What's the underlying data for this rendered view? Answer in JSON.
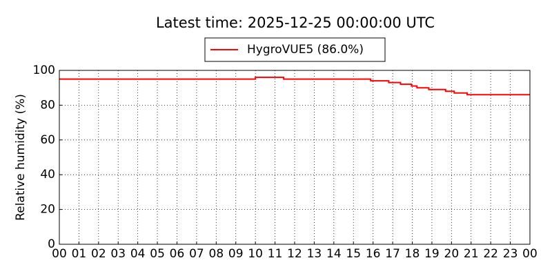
{
  "chart_data": {
    "type": "line",
    "title": "Latest time: 2025-12-25 00:00:00 UTC",
    "y_label": "Relative humidity (%)",
    "x": [
      0,
      9.9,
      9.9,
      10,
      10,
      11.44,
      11.44,
      15.88,
      15.88,
      16.8,
      16.8,
      17.4,
      17.4,
      17.96,
      17.96,
      18.24,
      18.24,
      18.84,
      18.84,
      19.7,
      19.7,
      20.14,
      20.14,
      20.8,
      20.8,
      24
    ],
    "series": [
      {
        "name": "HygroVUE5 (86.0%)",
        "color": "#ff0000",
        "values": [
          95,
          95,
          95,
          95,
          96,
          96,
          95,
          95,
          94,
          94,
          93,
          93,
          92,
          92,
          91,
          91,
          90,
          90,
          89,
          89,
          88,
          88,
          87,
          87,
          86,
          86
        ]
      }
    ],
    "xlim": [
      0,
      24
    ],
    "xticks": [
      {
        "value": 0,
        "label": "00"
      },
      {
        "value": 1,
        "label": "01"
      },
      {
        "value": 2,
        "label": "02"
      },
      {
        "value": 3,
        "label": "03"
      },
      {
        "value": 4,
        "label": "04"
      },
      {
        "value": 5,
        "label": "05"
      },
      {
        "value": 6,
        "label": "06"
      },
      {
        "value": 7,
        "label": "07"
      },
      {
        "value": 8,
        "label": "08"
      },
      {
        "value": 9,
        "label": "09"
      },
      10,
      11,
      12,
      13,
      14,
      15,
      16,
      17,
      18,
      19,
      20,
      21,
      22,
      23,
      {
        "value": 24,
        "label": "00"
      }
    ],
    "ylim": [
      0,
      100
    ],
    "yticks": [
      0,
      20,
      40,
      60,
      80,
      100
    ],
    "grid": true
  }
}
